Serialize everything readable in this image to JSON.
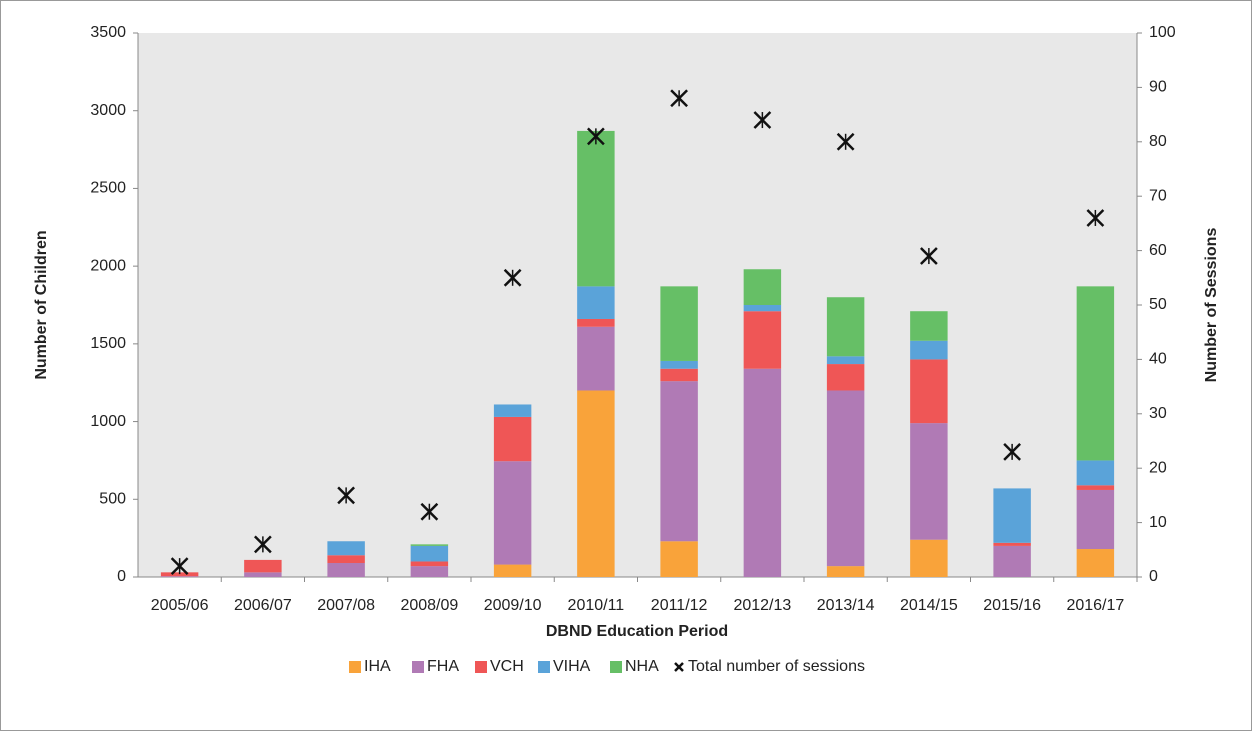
{
  "chart_data": {
    "type": "bar",
    "stacked": true,
    "x_label": "DBND Education Period",
    "y_label": "Number of Children",
    "y2_label": "Number of Sessions",
    "categories": [
      "2005/06",
      "2006/07",
      "2007/08",
      "2008/09",
      "2009/10",
      "2010/11",
      "2011/12",
      "2012/13",
      "2013/14",
      "2014/15",
      "2015/16",
      "2016/17"
    ],
    "series": [
      {
        "name": "IHA",
        "color": "#f9a33a",
        "values": [
          0,
          0,
          0,
          0,
          80,
          1200,
          230,
          0,
          70,
          240,
          0,
          180
        ]
      },
      {
        "name": "FHA",
        "color": "#b07ab5",
        "values": [
          5,
          30,
          90,
          70,
          665,
          410,
          1030,
          1340,
          1130,
          750,
          200,
          380
        ]
      },
      {
        "name": "VCH",
        "color": "#ef5656",
        "values": [
          25,
          80,
          50,
          30,
          285,
          50,
          80,
          370,
          170,
          410,
          20,
          30
        ]
      },
      {
        "name": "VIHA",
        "color": "#5aa3d9",
        "values": [
          0,
          0,
          90,
          100,
          80,
          210,
          50,
          40,
          50,
          120,
          350,
          160
        ]
      },
      {
        "name": "NHA",
        "color": "#66bf66",
        "values": [
          0,
          0,
          0,
          10,
          0,
          1000,
          480,
          230,
          380,
          190,
          0,
          1120
        ]
      },
      {
        "name": "Total number of sessions",
        "type": "scatter",
        "axis": "y2",
        "color": "#111111",
        "values": [
          2,
          6,
          15,
          12,
          55,
          81,
          88,
          84,
          80,
          59,
          23,
          66
        ]
      }
    ],
    "ylim": [
      0,
      3500
    ],
    "yticks": [
      0,
      500,
      1000,
      1500,
      2000,
      2500,
      3000,
      3500
    ],
    "y2lim": [
      0,
      100
    ],
    "y2ticks": [
      0,
      10,
      20,
      30,
      40,
      50,
      60,
      70,
      80,
      90,
      100
    ],
    "legend": "bottom",
    "plot_background": "#e8e8e8"
  }
}
